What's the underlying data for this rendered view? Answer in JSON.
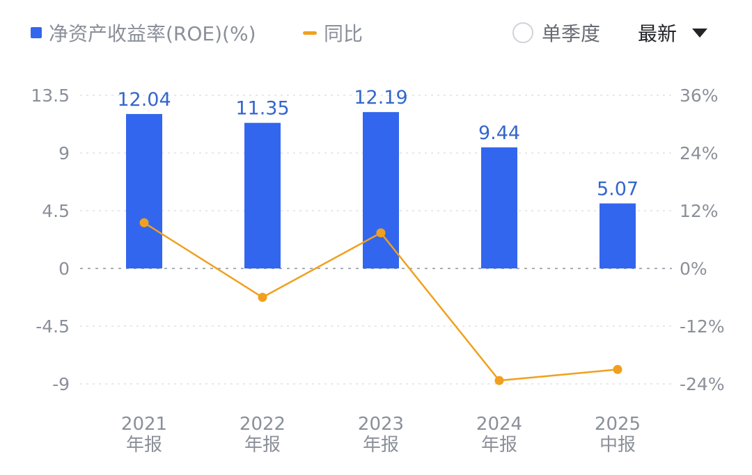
{
  "legend": {
    "bar_label": "净资产收益率(ROE)(%)",
    "line_label": "同比"
  },
  "controls": {
    "single_quarter_label": "单季度",
    "latest_label": "最新"
  },
  "colors": {
    "bar": "#3366ee",
    "line": "#f0a01e",
    "bar_label": "#3366cc",
    "axis_text": "#8a8f99",
    "grid": "#e6e8ec",
    "zero_line": "#a9adb4"
  },
  "chart_data": {
    "type": "bar",
    "categories": [
      {
        "year": "2021",
        "period": "年报"
      },
      {
        "year": "2022",
        "period": "年报"
      },
      {
        "year": "2023",
        "period": "年报"
      },
      {
        "year": "2024",
        "period": "年报"
      },
      {
        "year": "2025",
        "period": "中报"
      }
    ],
    "series": [
      {
        "name": "净资产收益率(ROE)(%)",
        "type": "bar",
        "axis": "left",
        "values": [
          12.04,
          11.35,
          12.19,
          9.44,
          5.07
        ],
        "labels": [
          "12.04",
          "11.35",
          "12.19",
          "9.44",
          "5.07"
        ]
      },
      {
        "name": "同比",
        "type": "line",
        "axis": "right",
        "values": [
          9.5,
          -6.0,
          7.4,
          -23.3,
          -21.0
        ]
      }
    ],
    "left_axis": {
      "ticks": [
        13.5,
        9,
        4.5,
        0,
        -4.5,
        -9
      ],
      "tick_labels": [
        "13.5",
        "9",
        "4.5",
        "0",
        "-4.5",
        "-9"
      ],
      "ylim": [
        -9,
        13.5
      ]
    },
    "right_axis": {
      "ticks": [
        36,
        24,
        12,
        0,
        -12,
        -24
      ],
      "tick_labels": [
        "36%",
        "24%",
        "12%",
        "0%",
        "-12%",
        "-24%"
      ],
      "ylim": [
        -24,
        36
      ]
    },
    "grid": true,
    "legend_position": "top-left"
  }
}
